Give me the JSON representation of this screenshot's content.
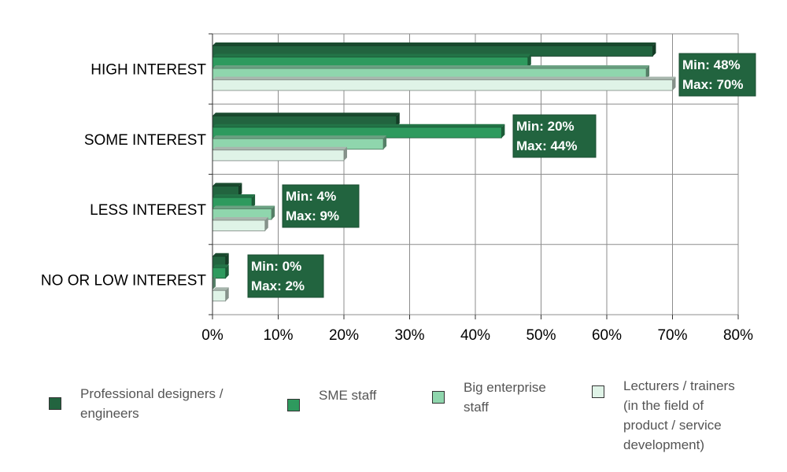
{
  "chart_data": {
    "type": "bar",
    "orientation": "horizontal",
    "categories": [
      "HIGH INTEREST",
      "SOME INTEREST",
      "LESS INTEREST",
      "NO OR LOW INTEREST"
    ],
    "series": [
      {
        "name": "Professional designers / engineers",
        "color": "#22643f",
        "values": [
          67,
          28,
          4,
          2
        ]
      },
      {
        "name": "SME staff",
        "color": "#2e9a5e",
        "values": [
          48,
          44,
          6,
          2
        ]
      },
      {
        "name": "Big enterprise staff",
        "color": "#8fd6ad",
        "values": [
          66,
          26,
          9,
          0
        ]
      },
      {
        "name": "Lecturers / trainers (in the field of product / service development)",
        "color": "#dff3e7",
        "values": [
          70,
          20,
          8,
          2
        ]
      }
    ],
    "xlim": [
      0,
      80
    ],
    "xticks": [
      "0%",
      "10%",
      "20%",
      "30%",
      "40%",
      "50%",
      "60%",
      "70%",
      "80%"
    ],
    "grid": true,
    "annotations": [
      {
        "category": "HIGH INTEREST",
        "min": "Min: 48%",
        "max": "Max: 70%"
      },
      {
        "category": "SOME INTEREST",
        "min": "Min: 20%",
        "max": "Max: 44%"
      },
      {
        "category": "LESS INTEREST",
        "min": "Min: 4%",
        "max": "Max: 9%"
      },
      {
        "category": "NO OR LOW INTEREST",
        "min": "Min: 0%",
        "max": "Max: 2%"
      }
    ],
    "annotation_color": "#22643f",
    "legend_position": "bottom",
    "legend": [
      {
        "lines": [
          "Professional designers /",
          "engineers"
        ],
        "color": "#22643f"
      },
      {
        "lines": [
          "SME staff"
        ],
        "color": "#2e9a5e"
      },
      {
        "lines": [
          "Big enterprise",
          "staff"
        ],
        "color": "#8fd6ad"
      },
      {
        "lines": [
          "Lecturers / trainers",
          "(in the field of",
          "product / service",
          "development)"
        ],
        "color": "#dff3e7"
      }
    ]
  }
}
